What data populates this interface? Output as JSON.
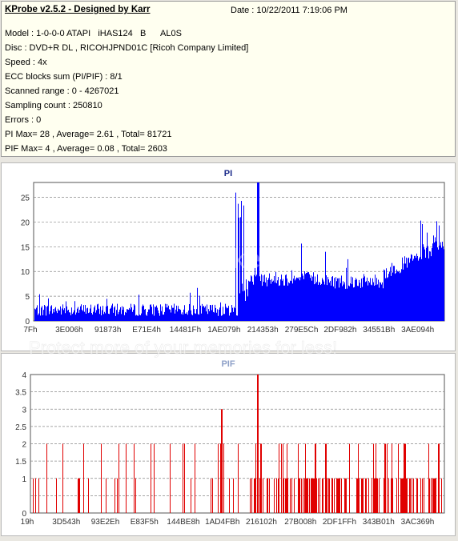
{
  "info": {
    "title": "KProbe v2.5.2 - Designed by Karr",
    "date": "Date : 10/22/2011 7:19:06 PM",
    "lines": [
      "Model : 1-0-0-0 ATAPI   iHAS124   B      AL0S",
      "Disc : DVD+R DL , RICOHJPND01C [Ricoh Company Limited]",
      "Speed : 4x",
      "ECC blocks sum (PI/PIF) : 8/1",
      "Scanned range : 0 - 4267021",
      "Sampling count : 250810",
      "Errors : 0",
      "PI Max= 28 , Average= 2.61 , Total= 81721",
      "PIF Max= 4 , Average= 0.08 , Total= 2603"
    ]
  },
  "watermark": {
    "logo": "photobucket",
    "text": "Protect more of your memories for less!"
  },
  "chart_data": [
    {
      "type": "bar",
      "title": "PI",
      "color": "#0000ff",
      "title_color": "#1a2a8a",
      "ylim": [
        0,
        28
      ],
      "yticks": [
        0,
        5,
        10,
        15,
        20,
        25
      ],
      "xticks": [
        "7Fh",
        "3E006h",
        "91873h",
        "E71E4h",
        "14481Fh",
        "1AE079h",
        "214353h",
        "279E5Ch",
        "2DF982h",
        "34551Bh",
        "3AE094h"
      ],
      "grid": true,
      "max_value": 28,
      "average": 2.61
    },
    {
      "type": "bar",
      "title": "PIF",
      "color": "#e00000",
      "title_color": "#8ea0c8",
      "ylim": [
        0,
        4
      ],
      "yticks": [
        0,
        0.5,
        1,
        1.5,
        2,
        2.5,
        3,
        3.5,
        4
      ],
      "ytick_labels": [
        "0",
        "",
        "1",
        "1.5",
        "2",
        "2.5",
        "3",
        "3.5",
        "4"
      ],
      "xticks": [
        "19h",
        "3D543h",
        "93E2Eh",
        "E83F5h",
        "144BE8h",
        "1AD4FBh",
        "216102h",
        "27B008h",
        "2DF1FFh",
        "343B01h",
        "3AC369h"
      ],
      "grid": true,
      "max_value": 4,
      "average": 0.08
    }
  ]
}
